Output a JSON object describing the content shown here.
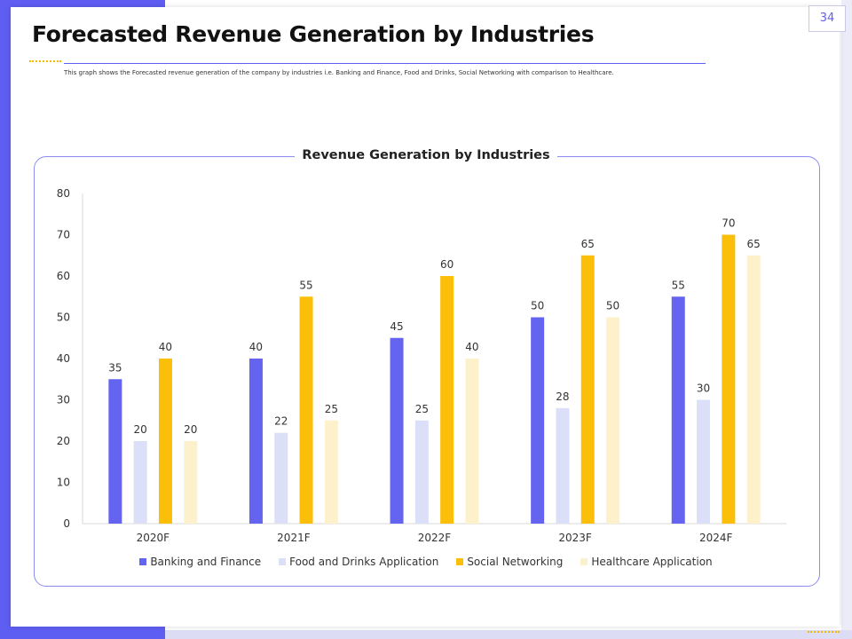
{
  "page": {
    "number": "34",
    "title": "Forecasted Revenue Generation by Industries",
    "subtitle": "This graph shows the Forecasted revenue generation of the company by industries i.e. Banking and Finance, Food and Drinks, Social Networking with comparison to Healthcare."
  },
  "colors": {
    "accent": "#5f5ef2",
    "banking": "#6464f0",
    "food": "#dcdff8",
    "social": "#fbbf0a",
    "health": "#fdf1cc"
  },
  "chart_data": {
    "type": "bar",
    "title": "Revenue Generation by Industries",
    "categories": [
      "2020F",
      "2021F",
      "2022F",
      "2023F",
      "2024F"
    ],
    "series": [
      {
        "name": "Banking and Finance",
        "values": [
          35,
          40,
          45,
          50,
          55
        ]
      },
      {
        "name": "Food and Drinks Application",
        "values": [
          20,
          22,
          25,
          28,
          30
        ]
      },
      {
        "name": "Social Networking",
        "values": [
          40,
          55,
          60,
          65,
          70
        ]
      },
      {
        "name": "Healthcare Application",
        "values": [
          20,
          25,
          40,
          50,
          65
        ]
      }
    ],
    "ylim": [
      0,
      80
    ],
    "yticks": [
      0,
      10,
      20,
      30,
      40,
      50,
      60,
      70,
      80
    ],
    "xlabel": "",
    "ylabel": "",
    "legend_position": "bottom",
    "grid": false,
    "data_labels": true
  }
}
